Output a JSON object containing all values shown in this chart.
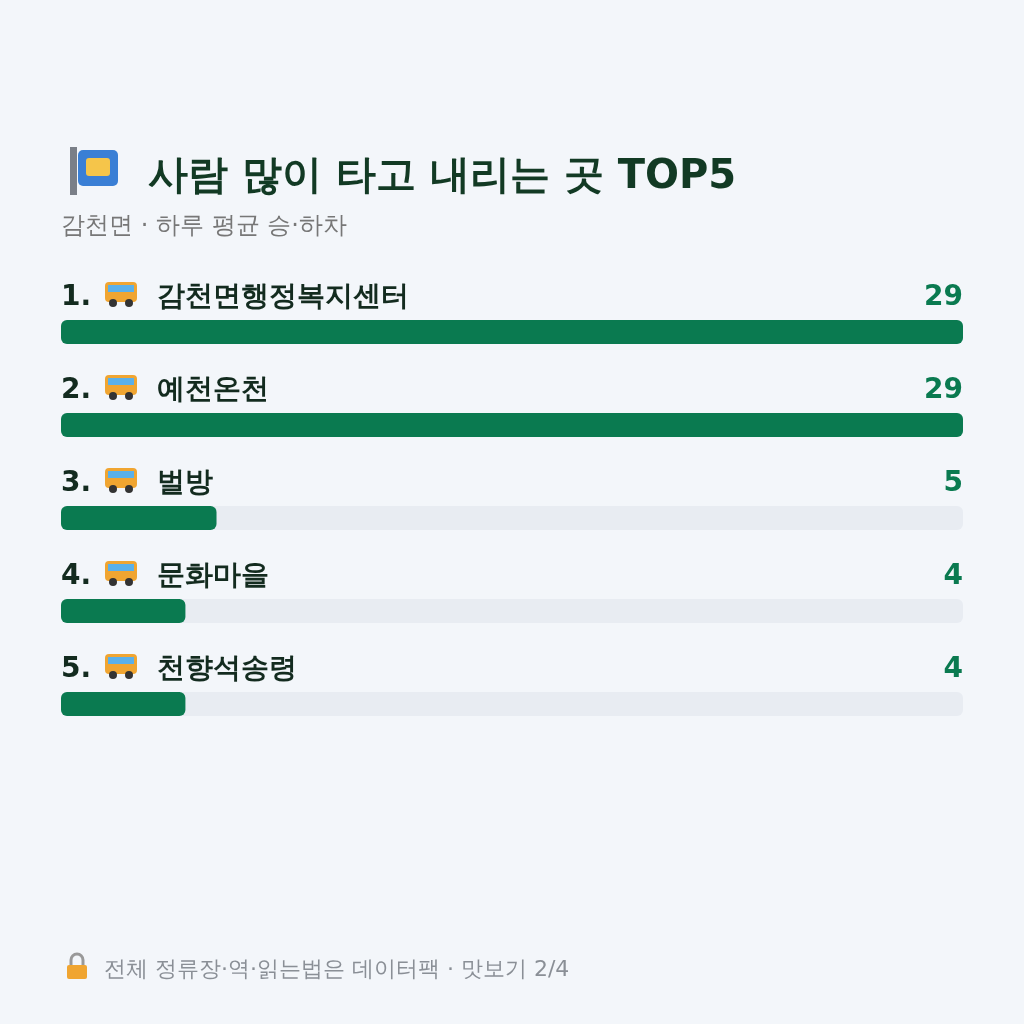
{
  "chart_data": {
    "type": "bar",
    "orientation": "horizontal",
    "title": "사람 많이 타고 내리는 곳 TOP5",
    "subtitle": "감천면 · 하루 평균 승·하차",
    "categories": [
      "1. 감천면행정복지센터",
      "2. 예천온천",
      "3. 벌방",
      "4. 문화마을",
      "5. 천향석송령"
    ],
    "values": [
      29,
      29,
      5,
      4,
      4
    ],
    "color": "#0a7a50",
    "xlim": [
      0,
      29
    ],
    "data_labels": true,
    "annotations": [
      "전체 정류장·역·읽는법은 데이터팩 · 맛보기 2/4"
    ]
  }
}
